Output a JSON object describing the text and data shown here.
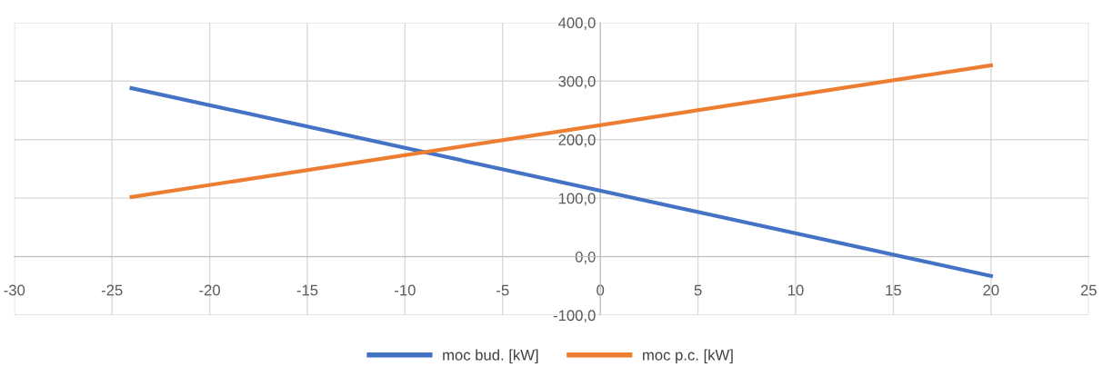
{
  "chart_data": {
    "type": "line",
    "series": [
      {
        "name": "moc bud. [kW]",
        "color": "#4472c4",
        "values": [
          288,
          -33
        ]
      },
      {
        "name": "moc p.c. [kW]",
        "color": "#ed7d31",
        "values": [
          102,
          327
        ]
      }
    ],
    "x": [
      -24,
      20
    ],
    "xlim": [
      -30,
      25
    ],
    "xticks": [
      -30,
      -25,
      -20,
      -15,
      -10,
      -5,
      0,
      5,
      10,
      15,
      20,
      25
    ],
    "ylim": [
      -100,
      400
    ],
    "yticks": [
      {
        "value": -100,
        "label": "-100,0"
      },
      {
        "value": 0,
        "label": "0,0"
      },
      {
        "value": 100,
        "label": "100,0"
      },
      {
        "value": 200,
        "label": "200,0"
      },
      {
        "value": 300,
        "label": "300,0"
      },
      {
        "value": 400,
        "label": "400,0"
      }
    ],
    "grid": true,
    "legend": "bottom",
    "marker": "none",
    "line_style": "solid"
  }
}
